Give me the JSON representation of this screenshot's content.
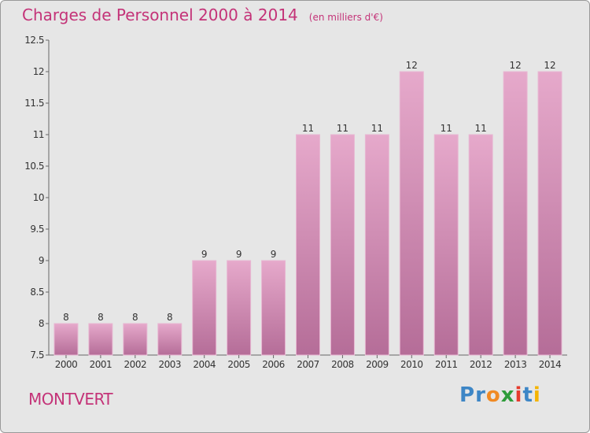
{
  "title": "Charges de Personnel 2000 à 2014",
  "unit_note": "(en milliers d'€)",
  "location": "MONTVERT",
  "logo": {
    "text": "Proxiti",
    "letters": [
      "P",
      "r",
      "o",
      "x",
      "i",
      "t",
      "i"
    ],
    "colors": [
      "#3d86c6",
      "#3d86c6",
      "#f08a24",
      "#2e9c3a",
      "#e63b2e",
      "#3d86c6",
      "#f4b400"
    ]
  },
  "colors": {
    "bar": "#d98bb6",
    "bar_top": "#e6a9cb",
    "accent": "#c43378",
    "background": "#e6e6e6"
  },
  "chart_data": {
    "type": "bar",
    "title": "Charges de Personnel 2000 à 2014",
    "xlabel": "",
    "ylabel": "",
    "categories": [
      "2000",
      "2001",
      "2002",
      "2003",
      "2004",
      "2005",
      "2006",
      "2007",
      "2008",
      "2009",
      "2010",
      "2011",
      "2012",
      "2013",
      "2014"
    ],
    "values": [
      8,
      8,
      8,
      8,
      9,
      9,
      9,
      11,
      11,
      11,
      12,
      11,
      11,
      12,
      12
    ],
    "ylim": [
      7.5,
      12.5
    ],
    "yticks": [
      "7.5",
      "8",
      "8.5",
      "9",
      "9.5",
      "10",
      "10.5",
      "11",
      "11.5",
      "12",
      "12.5"
    ],
    "grid": false,
    "legend": "none"
  }
}
